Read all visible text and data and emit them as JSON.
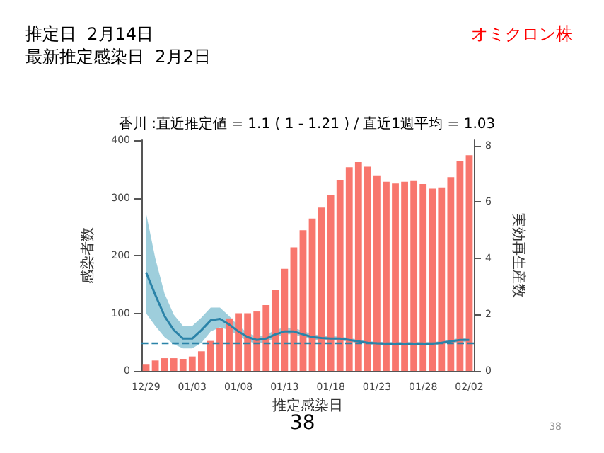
{
  "chart_data": {
    "type": "bar",
    "title": "香川 :直近推定値 = 1.1 ( 1 - 1.21 ) / 直近1週平均 = 1.03",
    "xlabel": "推定感染日",
    "ylabel": "感染者数",
    "y2label": "実効再生産数",
    "annotations": [
      "推定日  2月14日",
      "最新推定感染日  2月2日",
      "オミクロン株",
      "38",
      "38"
    ],
    "categories": [
      "12/29",
      null,
      null,
      null,
      null,
      "01/03",
      null,
      null,
      null,
      null,
      "01/08",
      null,
      null,
      null,
      null,
      "01/13",
      null,
      null,
      null,
      null,
      "01/18",
      null,
      null,
      null,
      null,
      "01/23",
      null,
      null,
      null,
      null,
      "01/28",
      null,
      null,
      null,
      null,
      "02/02"
    ],
    "series": [
      {
        "color": "#f8766d",
        "values": [
          12,
          18,
          22,
          22,
          21,
          25,
          34,
          52,
          74,
          91,
          100,
          100,
          103,
          114,
          140,
          177,
          214,
          244,
          264,
          283,
          305,
          331,
          353,
          362,
          354,
          339,
          328,
          325,
          328,
          329,
          324,
          316,
          318,
          336,
          364,
          374
        ]
      },
      {
        "type": "line",
        "axis": "y2",
        "color": "#2b83a8",
        "values": [
          3.5,
          2.7,
          1.95,
          1.45,
          1.15,
          1.15,
          1.45,
          1.8,
          1.85,
          1.65,
          1.4,
          1.2,
          1.1,
          1.15,
          1.3,
          1.4,
          1.4,
          1.3,
          1.2,
          1.17,
          1.15,
          1.15,
          1.1,
          1.05,
          1.0,
          0.98,
          0.97,
          0.97,
          0.97,
          0.97,
          0.97,
          0.97,
          1.0,
          1.05,
          1.1,
          1.1
        ],
        "lower": [
          2.05,
          1.6,
          1.2,
          0.95,
          0.8,
          0.8,
          1.0,
          1.4,
          1.55,
          1.45,
          1.25,
          1.05,
          0.98,
          1.02,
          1.18,
          1.3,
          1.3,
          1.2,
          1.12,
          1.09,
          1.08,
          1.08,
          1.04,
          0.99,
          0.95,
          0.93,
          0.92,
          0.92,
          0.92,
          0.92,
          0.92,
          0.92,
          0.95,
          0.99,
          1.03,
          1.02
        ],
        "upper": [
          5.6,
          4.0,
          2.75,
          2.0,
          1.6,
          1.6,
          1.9,
          2.25,
          2.25,
          1.95,
          1.6,
          1.35,
          1.22,
          1.28,
          1.45,
          1.55,
          1.52,
          1.42,
          1.3,
          1.26,
          1.23,
          1.22,
          1.17,
          1.11,
          1.06,
          1.03,
          1.02,
          1.02,
          1.02,
          1.02,
          1.02,
          1.02,
          1.06,
          1.11,
          1.17,
          1.18
        ]
      }
    ],
    "ylim": [
      0,
      400
    ],
    "yticks": [
      0,
      100,
      200,
      300,
      400
    ],
    "y2lim": [
      0,
      8.2
    ],
    "y2ticks": [
      0,
      2,
      4,
      6,
      8
    ],
    "ref_lines": [
      {
        "axis": "y2",
        "value": 1,
        "color": "#2b83a8",
        "line_style": "dashed"
      }
    ],
    "grid": false,
    "marker": "none"
  }
}
